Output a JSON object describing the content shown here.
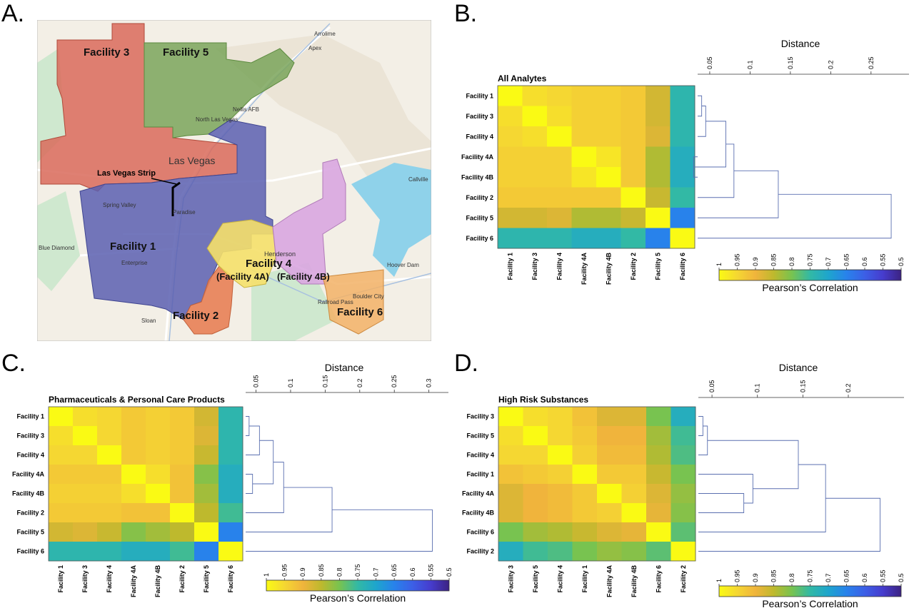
{
  "panels": {
    "A": {
      "letter": "A.",
      "map": {
        "facility_labels": [
          {
            "id": "f3",
            "text": "Facility 3",
            "fill": "#d96a5a"
          },
          {
            "id": "f5",
            "text": "Facility 5",
            "fill": "#7aa55a"
          },
          {
            "id": "f1",
            "text": "Facility 1",
            "fill": "#5a5fb0"
          },
          {
            "id": "f2",
            "text": "Facility 2",
            "fill": "#e88055"
          },
          {
            "id": "f4",
            "text": "Facility 4",
            "fill": "#f5e06a"
          },
          {
            "id": "f4a",
            "text": "(Facility 4A)",
            "fill": "#f5e06a"
          },
          {
            "id": "f4b",
            "text": "(Facility 4B)",
            "fill": "#d9a6e0"
          },
          {
            "id": "f6",
            "text": "Facility 6",
            "fill": "#f2b266"
          }
        ],
        "city_labels": [
          "Las Vegas",
          "Las Vegas Strip",
          "Henderson",
          "Spring Valley",
          "Paradise",
          "Enterprise",
          "North Las Vegas",
          "Boulder City",
          "Hoover Dam",
          "Sloan",
          "Callville",
          "Nellis AFB",
          "Apex",
          "Arrolime",
          "Blue Diamond",
          "Railroad Pass"
        ],
        "colors": {
          "land": "#f3efe6",
          "park": "#cfe8cf",
          "water": "#8fd2ea",
          "road": "#ffffff"
        }
      }
    },
    "B": {
      "letter": "B.",
      "chart_data": {
        "type": "heatmap",
        "title": "All Analytes",
        "labels": [
          "Facility 1",
          "Facility 3",
          "Facility 4",
          "Facility 4A",
          "Facility 4B",
          "Facility 2",
          "Facility 5",
          "Facility 6"
        ],
        "matrix": [
          [
            1.0,
            0.96,
            0.95,
            0.94,
            0.94,
            0.93,
            0.87,
            0.74
          ],
          [
            0.96,
            1.0,
            0.96,
            0.94,
            0.94,
            0.93,
            0.87,
            0.74
          ],
          [
            0.95,
            0.96,
            1.0,
            0.94,
            0.94,
            0.93,
            0.88,
            0.74
          ],
          [
            0.94,
            0.94,
            0.94,
            1.0,
            0.97,
            0.93,
            0.84,
            0.72
          ],
          [
            0.94,
            0.94,
            0.94,
            0.97,
            1.0,
            0.93,
            0.84,
            0.72
          ],
          [
            0.93,
            0.93,
            0.93,
            0.93,
            0.93,
            1.0,
            0.86,
            0.75
          ],
          [
            0.87,
            0.87,
            0.88,
            0.84,
            0.84,
            0.86,
            1.0,
            0.65
          ],
          [
            0.74,
            0.74,
            0.74,
            0.72,
            0.72,
            0.75,
            0.65,
            1.0
          ]
        ],
        "dendrogram": {
          "xlabel": "Distance",
          "ticks": [
            "0.05",
            "0.1",
            "0.15",
            "0.2",
            "0.25"
          ],
          "xlim": [
            0.035,
            0.29
          ],
          "merges": [
            {
              "a": 0,
              "b": 1,
              "h": 0.04
            },
            {
              "a": 3,
              "b": 4,
              "h": 0.03
            },
            {
              "a": 8,
              "b": 2,
              "h": 0.045
            },
            {
              "a": 10,
              "b": 9,
              "h": 0.07
            },
            {
              "a": 11,
              "b": 5,
              "h": 0.08
            },
            {
              "a": 12,
              "b": 6,
              "h": 0.135
            },
            {
              "a": 13,
              "b": 7,
              "h": 0.275
            }
          ]
        },
        "colorbar": {
          "label": "Pearson's Correlation",
          "ticks": [
            "1",
            "0.95",
            "0.9",
            "0.85",
            "0.8",
            "0.75",
            "0.7",
            "0.65",
            "0.6",
            "0.55",
            "0.5"
          ],
          "range": [
            1,
            0.5
          ]
        }
      }
    },
    "C": {
      "letter": "C.",
      "chart_data": {
        "type": "heatmap",
        "title": "Pharmaceuticals & Personal Care Products",
        "labels": [
          "Facility 1",
          "Facility 3",
          "Facility 4",
          "Facility 4A",
          "Facility 4B",
          "Facility 2",
          "Facility 5",
          "Facility 6"
        ],
        "matrix": [
          [
            1.0,
            0.96,
            0.95,
            0.93,
            0.94,
            0.93,
            0.87,
            0.74
          ],
          [
            0.96,
            1.0,
            0.95,
            0.93,
            0.94,
            0.93,
            0.88,
            0.74
          ],
          [
            0.95,
            0.95,
            1.0,
            0.93,
            0.94,
            0.93,
            0.86,
            0.74
          ],
          [
            0.93,
            0.93,
            0.93,
            1.0,
            0.96,
            0.92,
            0.81,
            0.72
          ],
          [
            0.94,
            0.94,
            0.94,
            0.96,
            1.0,
            0.92,
            0.83,
            0.72
          ],
          [
            0.93,
            0.93,
            0.93,
            0.92,
            0.92,
            1.0,
            0.85,
            0.76
          ],
          [
            0.87,
            0.88,
            0.86,
            0.81,
            0.83,
            0.85,
            1.0,
            0.65
          ],
          [
            0.74,
            0.74,
            0.74,
            0.72,
            0.72,
            0.76,
            0.65,
            1.0
          ]
        ],
        "dendrogram": {
          "xlabel": "Distance",
          "ticks": [
            "0.05",
            "0.1",
            "0.15",
            "0.2",
            "0.25",
            "0.3"
          ],
          "xlim": [
            0.035,
            0.32
          ],
          "merges": [
            {
              "a": 0,
              "b": 1,
              "h": 0.04
            },
            {
              "a": 3,
              "b": 4,
              "h": 0.045
            },
            {
              "a": 8,
              "b": 2,
              "h": 0.055
            },
            {
              "a": 10,
              "b": 9,
              "h": 0.075
            },
            {
              "a": 11,
              "b": 5,
              "h": 0.09
            },
            {
              "a": 12,
              "b": 6,
              "h": 0.16
            },
            {
              "a": 13,
              "b": 7,
              "h": 0.305
            }
          ]
        },
        "colorbar": {
          "label": "Pearson's Correlation",
          "ticks": [
            "1",
            "0.95",
            "0.9",
            "0.85",
            "0.8",
            "0.75",
            "0.7",
            "0.65",
            "0.6",
            "0.55",
            "0.5"
          ],
          "range": [
            1,
            0.5
          ]
        }
      }
    },
    "D": {
      "letter": "D.",
      "chart_data": {
        "type": "heatmap",
        "title": "High Risk Substances",
        "labels": [
          "Facility 3",
          "Facility 5",
          "Facility 4",
          "Facility 1",
          "Facility 4A",
          "Facility 4B",
          "Facility 6",
          "Facility 2"
        ],
        "matrix": [
          [
            1.0,
            0.96,
            0.95,
            0.92,
            0.88,
            0.88,
            0.8,
            0.72
          ],
          [
            0.96,
            1.0,
            0.95,
            0.93,
            0.9,
            0.9,
            0.83,
            0.76
          ],
          [
            0.95,
            0.95,
            1.0,
            0.94,
            0.91,
            0.91,
            0.84,
            0.77
          ],
          [
            0.92,
            0.93,
            0.94,
            1.0,
            0.93,
            0.93,
            0.86,
            0.8
          ],
          [
            0.88,
            0.9,
            0.91,
            0.93,
            1.0,
            0.94,
            0.88,
            0.82
          ],
          [
            0.88,
            0.9,
            0.91,
            0.93,
            0.94,
            1.0,
            0.89,
            0.81
          ],
          [
            0.8,
            0.83,
            0.84,
            0.86,
            0.88,
            0.89,
            1.0,
            0.78
          ],
          [
            0.72,
            0.76,
            0.77,
            0.8,
            0.82,
            0.81,
            0.78,
            1.0
          ]
        ],
        "dendrogram": {
          "xlabel": "Distance",
          "ticks": [
            "0.05",
            "0.1",
            "0.15",
            "0.2"
          ],
          "xlim": [
            0.035,
            0.255
          ],
          "merges": [
            {
              "a": 0,
              "b": 1,
              "h": 0.04
            },
            {
              "a": 8,
              "b": 2,
              "h": 0.045
            },
            {
              "a": 4,
              "b": 5,
              "h": 0.085
            },
            {
              "a": 10,
              "b": 3,
              "h": 0.095
            },
            {
              "a": 9,
              "b": 11,
              "h": 0.145
            },
            {
              "a": 12,
              "b": 6,
              "h": 0.175
            },
            {
              "a": 13,
              "b": 7,
              "h": 0.235
            }
          ]
        },
        "colorbar": {
          "label": "Pearson's Correlation",
          "ticks": [
            "1",
            "0.95",
            "0.9",
            "0.85",
            "0.8",
            "0.75",
            "0.7",
            "0.65",
            "0.6",
            "0.55",
            "0.5"
          ],
          "range": [
            1,
            0.5
          ]
        }
      }
    }
  }
}
